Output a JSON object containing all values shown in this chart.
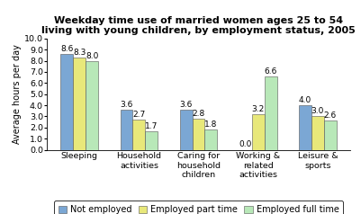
{
  "title_line1": "Weekday time use of married women ages 25 to 54",
  "title_line2": "living with young children, by employment status, 2005",
  "ylabel": "Average hours per day",
  "categories": [
    "Sleeping",
    "Household\nactivities",
    "Caring for\nhousehold\nchildren",
    "Working &\nrelated\nactivities",
    "Leisure &\nsports"
  ],
  "series_names": [
    "Not employed",
    "Employed part time",
    "Employed full time"
  ],
  "series_values": [
    [
      8.6,
      3.6,
      3.6,
      0.0,
      4.0
    ],
    [
      8.3,
      2.7,
      2.8,
      3.2,
      3.0
    ],
    [
      8.0,
      1.7,
      1.8,
      6.6,
      2.6
    ]
  ],
  "colors": [
    "#7ba7d4",
    "#e8e87a",
    "#b8e8b8"
  ],
  "ylim": [
    0.0,
    10.0
  ],
  "yticks": [
    0.0,
    1.0,
    2.0,
    3.0,
    4.0,
    5.0,
    6.0,
    7.0,
    8.0,
    9.0,
    10.0
  ],
  "ytick_labels": [
    "0.0",
    "1.0",
    "2.0",
    "3.0",
    "4.0",
    "5.0",
    "6.0",
    "7.0",
    "8.0",
    "9.0",
    "10.0"
  ],
  "bar_width": 0.21,
  "label_fontsize": 6.5,
  "title_fontsize": 8.0,
  "axis_label_fontsize": 7.0,
  "tick_fontsize": 6.8,
  "legend_fontsize": 7.0,
  "bg_color": "#ffffff"
}
